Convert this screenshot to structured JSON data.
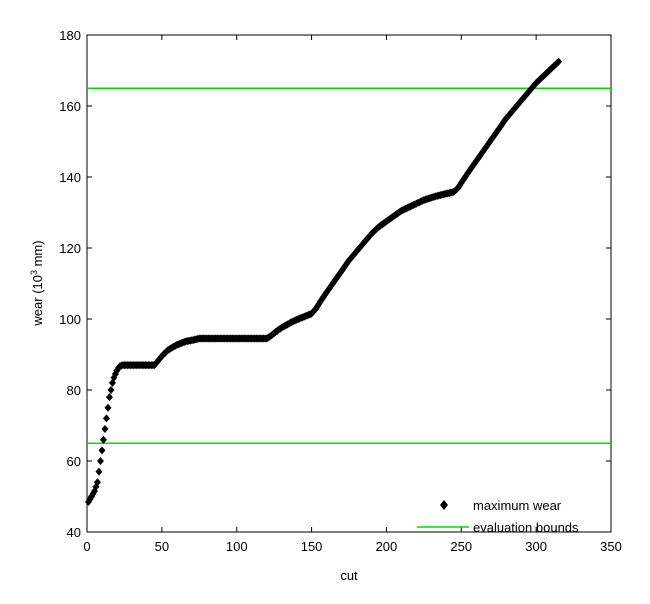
{
  "chart_data": {
    "type": "scatter",
    "xlabel": "cut",
    "ylabel_main": "wear (10",
    "ylabel_sup": "3",
    "ylabel_tail": " mm)",
    "xlim": [
      0,
      350
    ],
    "ylim": [
      40,
      180
    ],
    "xticks": [
      "0",
      "50",
      "100",
      "150",
      "200",
      "250",
      "300",
      "350"
    ],
    "yticks": [
      "40",
      "60",
      "80",
      "100",
      "120",
      "140",
      "160",
      "180"
    ],
    "grid": false,
    "legend_position": "bottom-right",
    "colors": {
      "series": "#000000",
      "bounds": "#00dd00",
      "axis": "#000000"
    },
    "series": [
      {
        "name": "maximum wear",
        "marker": "diamond",
        "points": [
          [
            1,
            48.5
          ],
          [
            3,
            50
          ],
          [
            5,
            51.5
          ],
          [
            7,
            54
          ],
          [
            8,
            57
          ],
          [
            9,
            60
          ],
          [
            10,
            63
          ],
          [
            11,
            66
          ],
          [
            12,
            69
          ],
          [
            13,
            72
          ],
          [
            14,
            75
          ],
          [
            15,
            78
          ],
          [
            16,
            80
          ],
          [
            17,
            82
          ],
          [
            18,
            83.5
          ],
          [
            19,
            84.5
          ],
          [
            20,
            85.5
          ],
          [
            21,
            86.2
          ],
          [
            22,
            86.7
          ],
          [
            24,
            87
          ],
          [
            27,
            87
          ],
          [
            30,
            87
          ],
          [
            35,
            87
          ],
          [
            40,
            87
          ],
          [
            45,
            87
          ],
          [
            48,
            88.5
          ],
          [
            51,
            90
          ],
          [
            54,
            91.2
          ],
          [
            57,
            92
          ],
          [
            60,
            92.7
          ],
          [
            63,
            93.2
          ],
          [
            66,
            93.7
          ],
          [
            70,
            94
          ],
          [
            75,
            94.5
          ],
          [
            80,
            94.5
          ],
          [
            90,
            94.5
          ],
          [
            100,
            94.5
          ],
          [
            110,
            94.5
          ],
          [
            120,
            94.5
          ],
          [
            122,
            95
          ],
          [
            125,
            96
          ],
          [
            128,
            97
          ],
          [
            131,
            97.8
          ],
          [
            134,
            98.5
          ],
          [
            137,
            99.2
          ],
          [
            140,
            99.8
          ],
          [
            143,
            100.3
          ],
          [
            146,
            100.8
          ],
          [
            150,
            101.5
          ],
          [
            153,
            103
          ],
          [
            156,
            105
          ],
          [
            160,
            107.5
          ],
          [
            165,
            110.5
          ],
          [
            170,
            113.5
          ],
          [
            175,
            116.5
          ],
          [
            180,
            119
          ],
          [
            185,
            121.5
          ],
          [
            190,
            124
          ],
          [
            195,
            126
          ],
          [
            200,
            127.5
          ],
          [
            205,
            129
          ],
          [
            210,
            130.5
          ],
          [
            215,
            131.5
          ],
          [
            220,
            132.5
          ],
          [
            225,
            133.5
          ],
          [
            230,
            134.2
          ],
          [
            235,
            134.8
          ],
          [
            240,
            135.3
          ],
          [
            245,
            135.8
          ],
          [
            248,
            137
          ],
          [
            251,
            139
          ],
          [
            255,
            141.5
          ],
          [
            260,
            144.5
          ],
          [
            265,
            147.5
          ],
          [
            270,
            150.5
          ],
          [
            275,
            153.5
          ],
          [
            280,
            156.5
          ],
          [
            285,
            159
          ],
          [
            290,
            161.5
          ],
          [
            295,
            164
          ],
          [
            300,
            166.5
          ],
          [
            305,
            168.5
          ],
          [
            310,
            170.5
          ],
          [
            315,
            172.5
          ]
        ]
      },
      {
        "name": "evaluation bounds",
        "marker": "line",
        "y_values": [
          65,
          165
        ]
      }
    ]
  }
}
